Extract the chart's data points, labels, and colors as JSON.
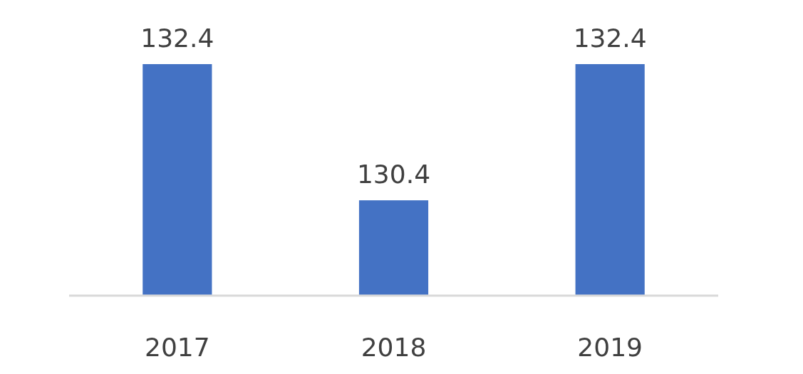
{
  "chart_data": {
    "type": "bar",
    "categories": [
      "2017",
      "2018",
      "2019"
    ],
    "values": [
      132.4,
      130.4,
      132.4
    ],
    "color": "#4472c4",
    "ylim": [
      129,
      132.4
    ],
    "data_labels": true,
    "tick_labels": "x"
  }
}
